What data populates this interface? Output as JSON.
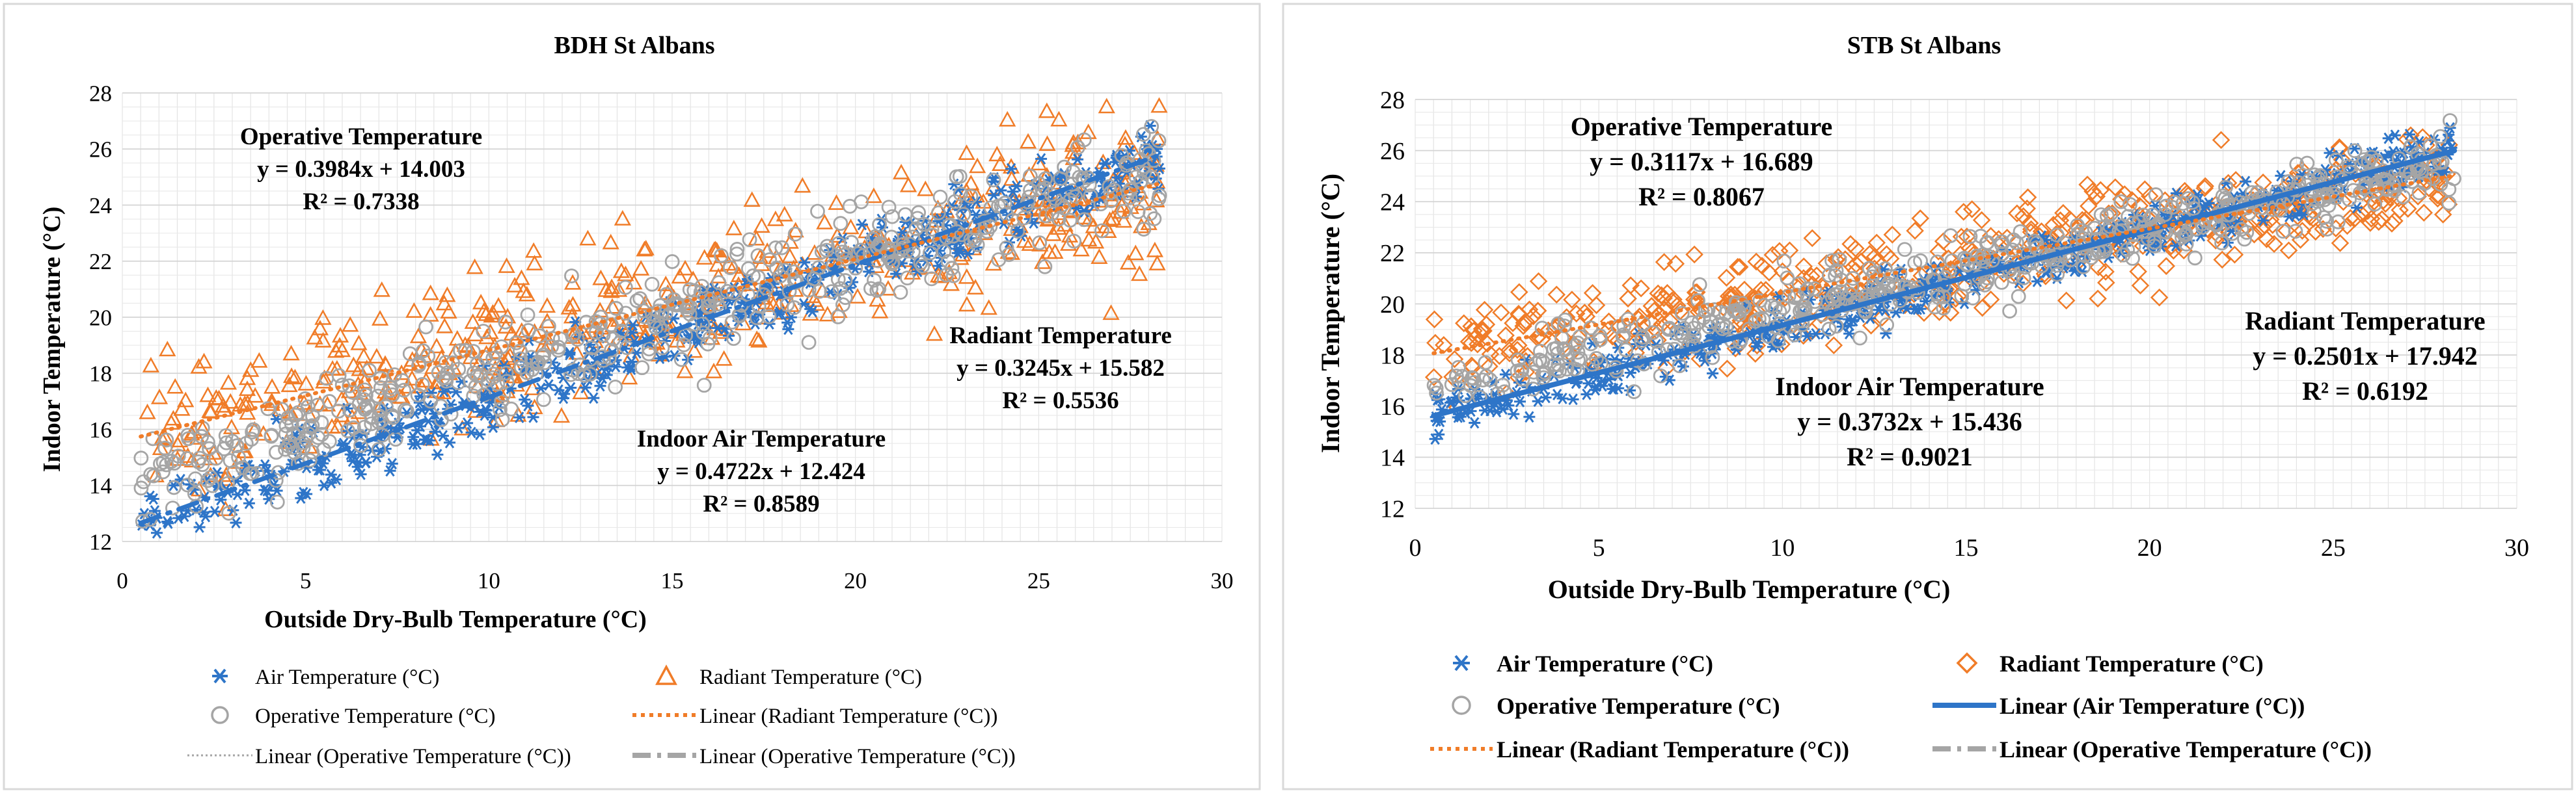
{
  "chart_data": [
    {
      "type": "scatter",
      "title": "BDH St Albans",
      "xlabel": "Outside Dry-Bulb Temperature (°C)",
      "ylabel": "Indoor Temperature (°C)",
      "xlim": [
        0,
        30
      ],
      "ylim": [
        12,
        28
      ],
      "xticks": [
        0,
        5,
        10,
        15,
        20,
        25,
        30
      ],
      "yticks": [
        12,
        14,
        16,
        18,
        20,
        22,
        24,
        26,
        28
      ],
      "grid": true,
      "x_range_data": [
        0.5,
        28.3
      ],
      "series": [
        {
          "name": "Air Temperature (°C)",
          "marker": "asterisk",
          "color": "#2E75C8",
          "fit": {
            "slope": 0.4722,
            "intercept": 12.424,
            "r2": 0.8589
          },
          "spread": 0.8
        },
        {
          "name": "Radiant Temperature (°C)",
          "marker": "triangle",
          "color": "#F07C28",
          "fit": {
            "slope": 0.3245,
            "intercept": 15.582,
            "r2": 0.5536
          },
          "spread": 1.7
        },
        {
          "name": "Operative Temperature (°C)",
          "marker": "circle",
          "color": "#A5A5A5",
          "fit": {
            "slope": 0.3984,
            "intercept": 14.003,
            "r2": 0.7338
          },
          "spread": 1.1
        }
      ],
      "annotations": [
        {
          "title": "Operative Temperature",
          "equation": "y = 0.3984x + 14.003",
          "r2": "R² = 0.7338"
        },
        {
          "title": "Radiant Temperature",
          "equation": "y = 0.3245x + 15.582",
          "r2": "R² = 0.5536"
        },
        {
          "title": "Indoor Air Temperature",
          "equation": "y = 0.4722x + 12.424",
          "r2": "R² = 0.8589"
        }
      ],
      "legend": [
        {
          "label": "Air Temperature (°C)",
          "symbol": "asterisk",
          "color": "#2E75C8"
        },
        {
          "label": "Radiant Temperature (°C)",
          "symbol": "triangle",
          "color": "#F07C28"
        },
        {
          "label": "Operative Temperature (°C)",
          "symbol": "circle",
          "color": "#A5A5A5"
        },
        {
          "label": "Linear (Radiant Temperature (°C))",
          "symbol": "dotted-line",
          "color": "#F07C28"
        },
        {
          "label": "Linear (Operative Temperature (°C))",
          "symbol": "thin-dotted-line",
          "color": "#A5A5A5"
        },
        {
          "label": "Linear (Operative Temperature (°C))",
          "symbol": "dash-dot-line",
          "color": "#A5A5A5"
        }
      ],
      "trendlines": [
        {
          "series": "Air Temperature (°C)",
          "style": "dash-dot",
          "color": "#2E75C8"
        },
        {
          "series": "Radiant Temperature (°C)",
          "style": "dotted",
          "color": "#F07C28"
        }
      ]
    },
    {
      "type": "scatter",
      "title": "STB St Albans",
      "xlabel": "Outside Dry-Bulb Temperature (°C)",
      "ylabel": "Indoor Temperature (°C)",
      "xlim": [
        0,
        30
      ],
      "ylim": [
        12,
        28
      ],
      "xticks": [
        0,
        5,
        10,
        15,
        20,
        25,
        30
      ],
      "yticks": [
        12,
        14,
        16,
        18,
        20,
        22,
        24,
        26,
        28
      ],
      "grid": true,
      "x_range_data": [
        0.5,
        28.3
      ],
      "series": [
        {
          "name": "Air Temperature (°C)",
          "marker": "asterisk",
          "color": "#2E75C8",
          "fit": {
            "slope": 0.3732,
            "intercept": 15.436,
            "r2": 0.9021
          },
          "spread": 0.6
        },
        {
          "name": "Radiant Temperature (°C)",
          "marker": "diamond",
          "color": "#F07C28",
          "fit": {
            "slope": 0.2501,
            "intercept": 17.942,
            "r2": 0.6192
          },
          "spread": 1.2
        },
        {
          "name": "Operative Temperature (°C)",
          "marker": "circle",
          "color": "#A5A5A5",
          "fit": {
            "slope": 0.3117,
            "intercept": 16.689,
            "r2": 0.8067
          },
          "spread": 0.8
        }
      ],
      "annotations": [
        {
          "title": "Operative Temperature",
          "equation": "y = 0.3117x + 16.689",
          "r2": "R² = 0.8067"
        },
        {
          "title": "Radiant Temperature",
          "equation": "y = 0.2501x + 17.942",
          "r2": "R² = 0.6192"
        },
        {
          "title": "Indoor Air Temperature",
          "equation": "y = 0.3732x + 15.436",
          "r2": "R² = 0.9021"
        }
      ],
      "legend": [
        {
          "label": "Air Temperature (°C)",
          "symbol": "asterisk",
          "color": "#2E75C8"
        },
        {
          "label": "Radiant Temperature (°C)",
          "symbol": "diamond",
          "color": "#F07C28"
        },
        {
          "label": "Operative Temperature (°C)",
          "symbol": "circle",
          "color": "#A5A5A5"
        },
        {
          "label": "Linear (Air Temperature (°C))",
          "symbol": "solid-line",
          "color": "#2E75C8"
        },
        {
          "label": "Linear (Radiant Temperature (°C))",
          "symbol": "dotted-line",
          "color": "#F07C28"
        },
        {
          "label": "Linear (Operative Temperature (°C))",
          "symbol": "dash-dot-line",
          "color": "#A5A5A5"
        }
      ],
      "trendlines": [
        {
          "series": "Air Temperature (°C)",
          "style": "solid",
          "color": "#2E75C8"
        },
        {
          "series": "Radiant Temperature (°C)",
          "style": "dotted",
          "color": "#F07C28"
        }
      ]
    }
  ]
}
